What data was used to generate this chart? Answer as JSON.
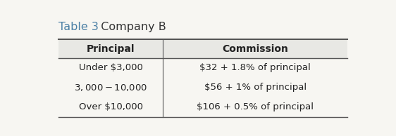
{
  "title_part1": "Table 3",
  "title_part2": "  Company B",
  "title_color1": "#4a7fa5",
  "title_color2": "#333333",
  "col_headers": [
    "Principal",
    "Commission"
  ],
  "rows": [
    [
      "Under $3,000",
      "$32 + 1.8% of principal"
    ],
    [
      "$3,000−$10,000",
      "$56 + 1% of principal"
    ],
    [
      "Over $10,000",
      "$106 + 0.5% of principal"
    ]
  ],
  "background_color": "#f7f6f2",
  "header_bg": "#e8e8e4",
  "line_color": "#555555",
  "text_color": "#222222",
  "title_fontsize": 11.5,
  "header_fontsize": 10,
  "body_fontsize": 9.5,
  "col_split": 0.37
}
